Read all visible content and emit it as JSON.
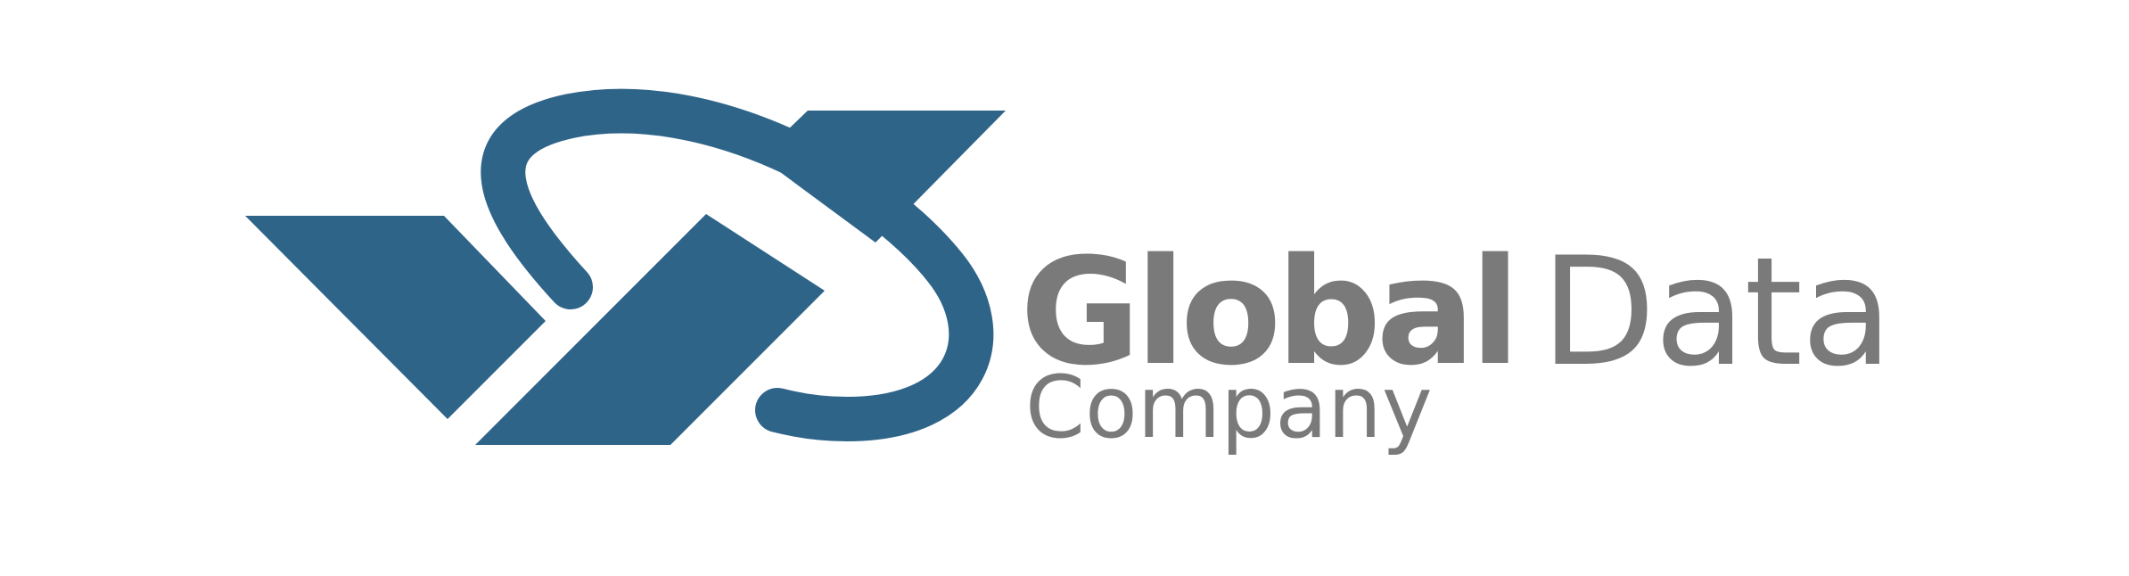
{
  "logo": {
    "brand_color": "#2f6489",
    "text_color": "#7a7a7a",
    "mark_icon": "globe-orbit-icon",
    "wordmark": {
      "global": "Global",
      "data": "Data",
      "company": "Company"
    }
  }
}
